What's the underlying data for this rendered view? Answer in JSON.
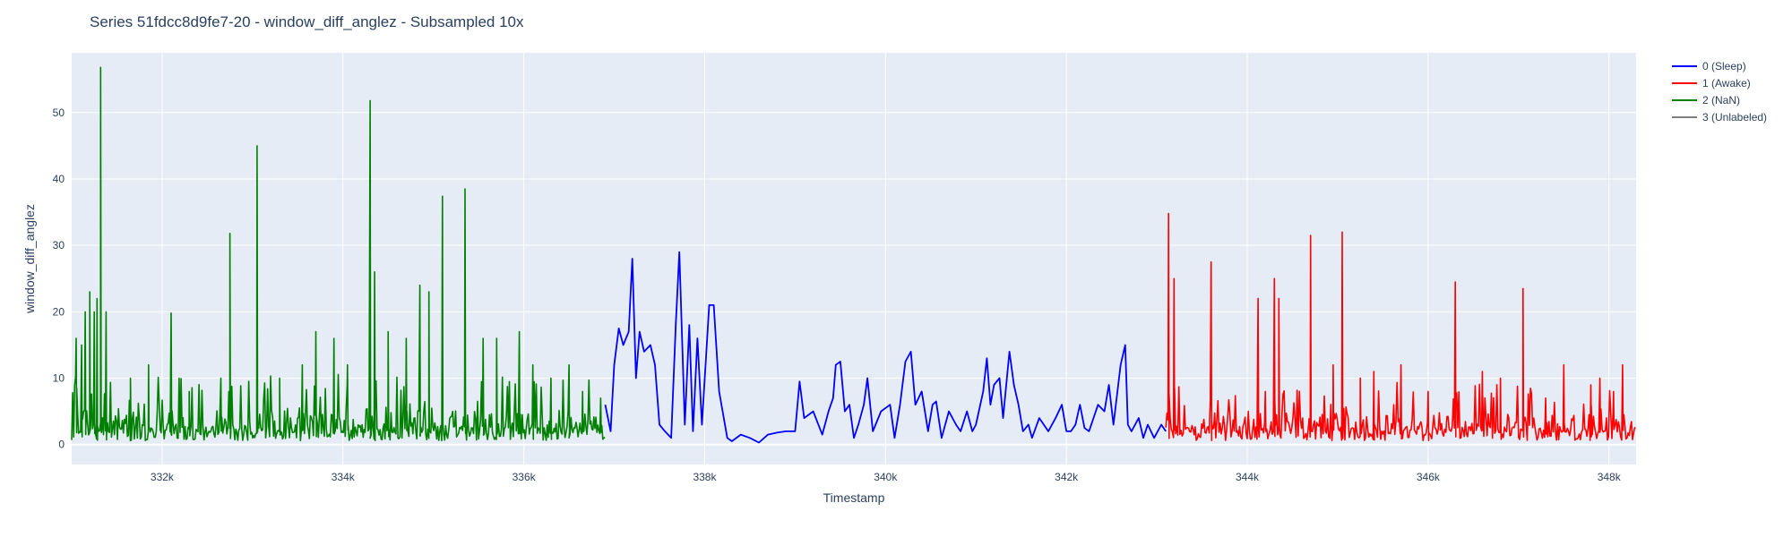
{
  "chart_data": {
    "type": "line",
    "title": "Series 51fdcc8d9fe7-20 - window_diff_anglez - Subsampled 10x",
    "xlabel": "Timestamp",
    "ylabel": "window_diff_anglez",
    "xlim": [
      331000,
      348300
    ],
    "ylim": [
      -3,
      59
    ],
    "x_ticks": [
      332000,
      334000,
      336000,
      338000,
      340000,
      342000,
      344000,
      346000,
      348000
    ],
    "x_tick_labels": [
      "332k",
      "334k",
      "336k",
      "338k",
      "340k",
      "342k",
      "344k",
      "346k",
      "348k"
    ],
    "y_ticks": [
      0,
      10,
      20,
      30,
      40,
      50
    ],
    "y_tick_labels": [
      "0",
      "10",
      "20",
      "30",
      "40",
      "50"
    ],
    "grid": true,
    "legend_position": "top-right",
    "series": [
      {
        "name": "0 (Sleep)",
        "color": "#0000ff",
        "x_range": [
          336900,
          343100
        ],
        "points": [
          [
            336900,
            6
          ],
          [
            336960,
            2
          ],
          [
            337000,
            12
          ],
          [
            337050,
            17.5
          ],
          [
            337100,
            15
          ],
          [
            337160,
            17
          ],
          [
            337200,
            28
          ],
          [
            337240,
            10
          ],
          [
            337280,
            17
          ],
          [
            337330,
            14
          ],
          [
            337400,
            15
          ],
          [
            337450,
            12
          ],
          [
            337500,
            3
          ],
          [
            337560,
            2
          ],
          [
            337630,
            1
          ],
          [
            337680,
            18
          ],
          [
            337720,
            29
          ],
          [
            337780,
            3
          ],
          [
            337830,
            18
          ],
          [
            337870,
            2
          ],
          [
            337920,
            16
          ],
          [
            337970,
            3
          ],
          [
            338050,
            21
          ],
          [
            338100,
            21
          ],
          [
            338160,
            8
          ],
          [
            338250,
            1
          ],
          [
            338300,
            0.5
          ],
          [
            338400,
            1.5
          ],
          [
            338500,
            1
          ],
          [
            338600,
            0.3
          ],
          [
            338700,
            1.5
          ],
          [
            338800,
            1.8
          ],
          [
            338900,
            2
          ],
          [
            339000,
            2
          ],
          [
            339050,
            9.5
          ],
          [
            339100,
            4
          ],
          [
            339200,
            5
          ],
          [
            339300,
            1.5
          ],
          [
            339370,
            5
          ],
          [
            339420,
            7
          ],
          [
            339450,
            12
          ],
          [
            339500,
            12.5
          ],
          [
            339550,
            5
          ],
          [
            339600,
            6
          ],
          [
            339650,
            1
          ],
          [
            339700,
            3
          ],
          [
            339760,
            6
          ],
          [
            339800,
            10
          ],
          [
            339860,
            2
          ],
          [
            339950,
            5
          ],
          [
            340050,
            6
          ],
          [
            340100,
            1
          ],
          [
            340160,
            6
          ],
          [
            340220,
            12.5
          ],
          [
            340280,
            14
          ],
          [
            340330,
            6
          ],
          [
            340400,
            8
          ],
          [
            340470,
            2
          ],
          [
            340520,
            6
          ],
          [
            340560,
            6.5
          ],
          [
            340620,
            1
          ],
          [
            340700,
            5
          ],
          [
            340780,
            3
          ],
          [
            340830,
            2
          ],
          [
            340900,
            5
          ],
          [
            340960,
            2
          ],
          [
            341000,
            3
          ],
          [
            341080,
            8
          ],
          [
            341120,
            13
          ],
          [
            341160,
            6
          ],
          [
            341200,
            9
          ],
          [
            341260,
            10
          ],
          [
            341300,
            4
          ],
          [
            341370,
            14
          ],
          [
            341420,
            9
          ],
          [
            341470,
            6
          ],
          [
            341520,
            2
          ],
          [
            341580,
            3
          ],
          [
            341620,
            1
          ],
          [
            341700,
            4
          ],
          [
            341800,
            2
          ],
          [
            341880,
            4
          ],
          [
            341950,
            6
          ],
          [
            342000,
            2
          ],
          [
            342050,
            2
          ],
          [
            342100,
            3
          ],
          [
            342150,
            6
          ],
          [
            342200,
            2.5
          ],
          [
            342250,
            2
          ],
          [
            342350,
            6
          ],
          [
            342420,
            5
          ],
          [
            342470,
            9
          ],
          [
            342520,
            3
          ],
          [
            342600,
            12
          ],
          [
            342650,
            15
          ],
          [
            342680,
            3
          ],
          [
            342720,
            2
          ],
          [
            342800,
            4
          ],
          [
            342850,
            1
          ],
          [
            342900,
            3
          ],
          [
            342970,
            1
          ],
          [
            343050,
            3
          ],
          [
            343100,
            2
          ]
        ]
      },
      {
        "name": "1 (Awake)",
        "color": "#ff0000",
        "x_range": [
          343100,
          348300
        ],
        "peaks": [
          [
            343130,
            34.8
          ],
          [
            343190,
            25
          ],
          [
            343600,
            27.5
          ],
          [
            344120,
            22
          ],
          [
            344200,
            8
          ],
          [
            344300,
            25
          ],
          [
            344350,
            22
          ],
          [
            344700,
            31.5
          ],
          [
            344950,
            12
          ],
          [
            345050,
            32
          ],
          [
            345250,
            10
          ],
          [
            345400,
            11
          ],
          [
            345700,
            12
          ],
          [
            346000,
            8
          ],
          [
            346300,
            24.5
          ],
          [
            346600,
            11
          ],
          [
            346800,
            10
          ],
          [
            347050,
            23.5
          ],
          [
            347300,
            7
          ],
          [
            347500,
            12
          ],
          [
            347800,
            9
          ],
          [
            347900,
            10
          ],
          [
            348050,
            8
          ],
          [
            348150,
            12
          ]
        ]
      },
      {
        "name": "2 (NaN)",
        "color": "#008000",
        "x_range": [
          331000,
          336900
        ],
        "peaks": [
          [
            331050,
            16
          ],
          [
            331110,
            15
          ],
          [
            331150,
            20
          ],
          [
            331200,
            23
          ],
          [
            331250,
            20
          ],
          [
            331280,
            22
          ],
          [
            331320,
            56.8
          ],
          [
            331380,
            20
          ],
          [
            331650,
            10
          ],
          [
            331850,
            12
          ],
          [
            332100,
            19.8
          ],
          [
            332300,
            8
          ],
          [
            332650,
            10
          ],
          [
            332750,
            31.8
          ],
          [
            333050,
            45
          ],
          [
            333300,
            10
          ],
          [
            333550,
            12
          ],
          [
            333700,
            17
          ],
          [
            333900,
            16
          ],
          [
            334050,
            12
          ],
          [
            334300,
            51.8
          ],
          [
            334350,
            26
          ],
          [
            334500,
            17
          ],
          [
            334700,
            16
          ],
          [
            334850,
            24
          ],
          [
            334950,
            23
          ],
          [
            335100,
            37.4
          ],
          [
            335350,
            38.5
          ],
          [
            335550,
            16
          ],
          [
            335700,
            16
          ],
          [
            335950,
            17
          ],
          [
            336100,
            12
          ],
          [
            336300,
            10
          ],
          [
            336500,
            12
          ],
          [
            336650,
            8
          ],
          [
            336850,
            7
          ]
        ]
      },
      {
        "name": "3 (Unlabeled)",
        "color": "#808080",
        "points": []
      }
    ]
  }
}
